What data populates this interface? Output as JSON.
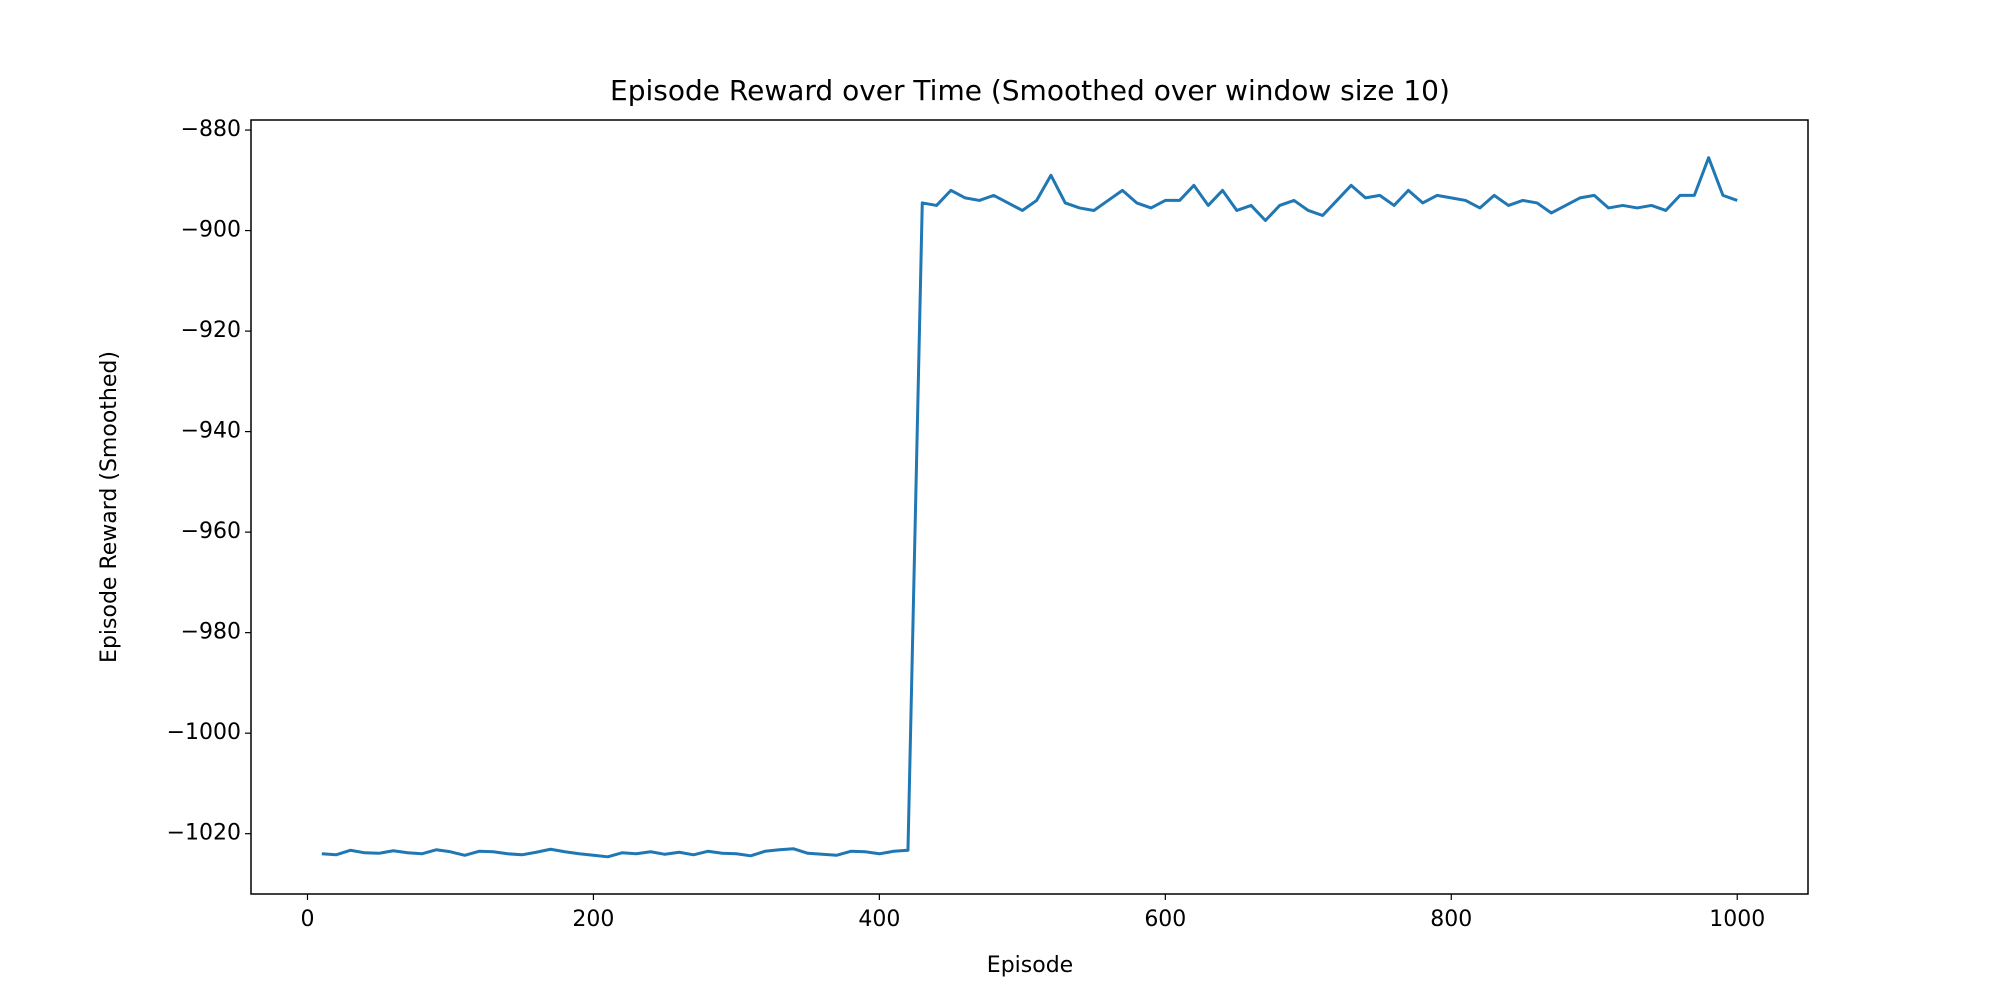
{
  "chart_data": {
    "type": "line",
    "title": "Episode Reward over Time (Smoothed over window size 10)",
    "x_label": "Episode",
    "y_label": "Episode Reward (Smoothed)",
    "x": [
      10,
      20,
      30,
      40,
      50,
      60,
      70,
      80,
      90,
      100,
      110,
      120,
      130,
      140,
      150,
      160,
      170,
      180,
      190,
      200,
      210,
      220,
      230,
      240,
      250,
      260,
      270,
      280,
      290,
      300,
      310,
      320,
      330,
      340,
      350,
      360,
      370,
      380,
      390,
      400,
      410,
      420,
      430,
      440,
      450,
      460,
      470,
      480,
      490,
      500,
      510,
      520,
      530,
      540,
      550,
      560,
      570,
      580,
      590,
      600,
      610,
      620,
      630,
      640,
      650,
      660,
      670,
      680,
      690,
      700,
      710,
      720,
      730,
      740,
      750,
      760,
      770,
      780,
      790,
      800,
      810,
      820,
      830,
      840,
      850,
      860,
      870,
      880,
      890,
      900,
      910,
      920,
      930,
      940,
      950,
      960,
      970,
      980,
      990,
      1000
    ],
    "series": [
      {
        "name": "Episode Reward (Smoothed)",
        "color": "#1f77b4",
        "values": [
          -1024,
          -1024.2,
          -1023.3,
          -1023.8,
          -1023.9,
          -1023.4,
          -1023.8,
          -1024,
          -1023.2,
          -1023.6,
          -1024.3,
          -1023.5,
          -1023.6,
          -1024,
          -1024.2,
          -1023.7,
          -1023.1,
          -1023.6,
          -1024,
          -1024.3,
          -1024.6,
          -1023.8,
          -1024,
          -1023.6,
          -1024.1,
          -1023.7,
          -1024.2,
          -1023.5,
          -1023.9,
          -1024,
          -1024.4,
          -1023.5,
          -1023.2,
          -1023,
          -1023.9,
          -1024.1,
          -1024.3,
          -1023.5,
          -1023.6,
          -1024,
          -1023.5,
          -1023.3,
          -894.5,
          -895,
          -892,
          -893.5,
          -894,
          -893,
          -894.5,
          -896,
          -894,
          -889,
          -894.5,
          -895.5,
          -896,
          -894,
          -892,
          -894.5,
          -895.5,
          -894,
          -894,
          -891,
          -895,
          -892,
          -896,
          -895,
          -898,
          -895,
          -894,
          -896,
          -897,
          -894,
          -891,
          -893.5,
          -893,
          -895,
          -892,
          -894.5,
          -893,
          -893.5,
          -894,
          -895.5,
          -893,
          -895,
          -894,
          -894.5,
          -896.5,
          -895,
          -893.5,
          -893,
          -895.5,
          -895,
          -895.5,
          -895,
          -896,
          -893,
          -893,
          -885.5,
          -893,
          -894
        ]
      }
    ],
    "xlim": [
      -39.5,
      1049.5
    ],
    "ylim": [
      -1032,
      -878
    ],
    "xticks": [
      0,
      200,
      400,
      600,
      800,
      1000
    ],
    "yticks": [
      {
        "value": -880,
        "label": "−880"
      },
      {
        "value": -900,
        "label": "−900"
      },
      {
        "value": -920,
        "label": "−920"
      },
      {
        "value": -940,
        "label": "−940"
      },
      {
        "value": -960,
        "label": "−960"
      },
      {
        "value": -980,
        "label": "−980"
      },
      {
        "value": -1000,
        "label": "−1000"
      },
      {
        "value": -1020,
        "label": "−1020"
      }
    ]
  }
}
